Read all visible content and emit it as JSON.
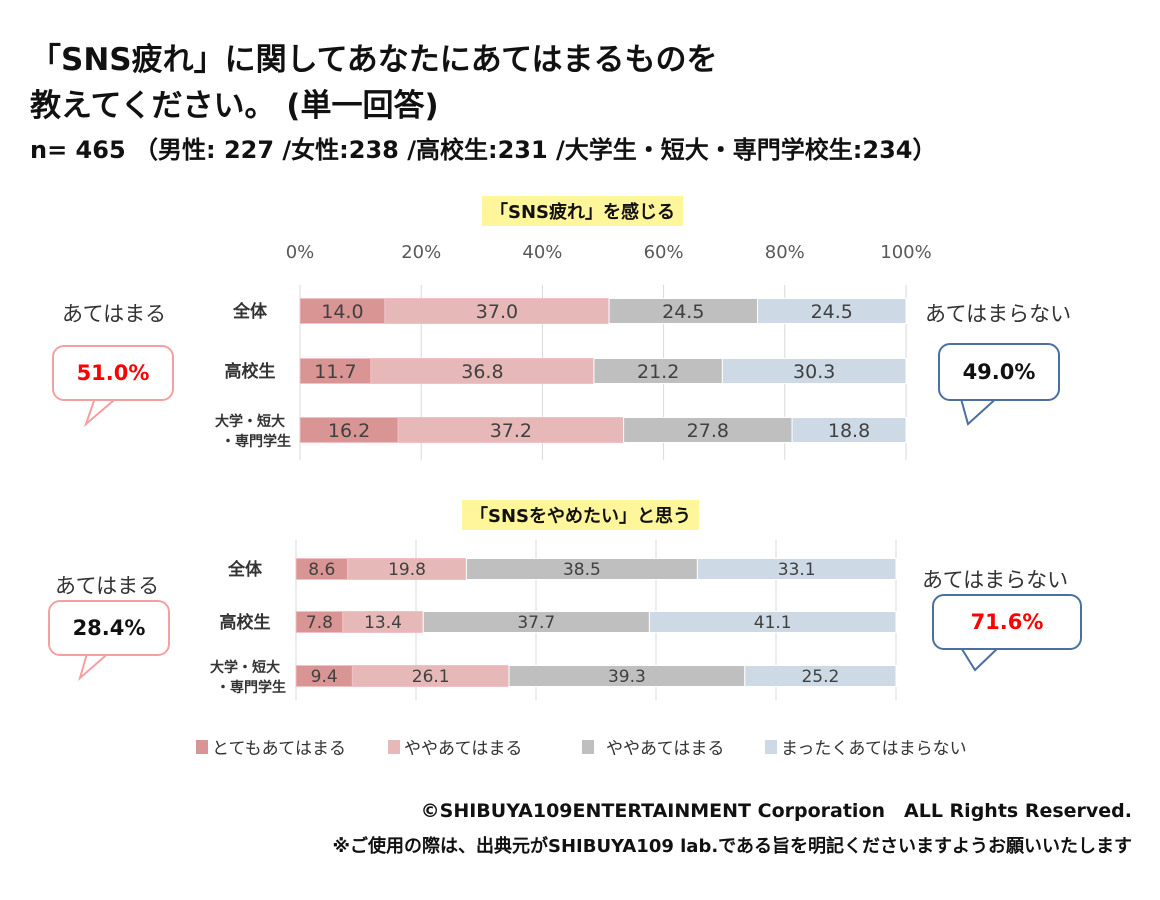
{
  "title_line1": "「SNS疲れ」に関してあなたにあてはまるものを",
  "title_line2": "教えてください。 (単一回答)",
  "subtitle": "n= 465 （男性: 227 /女性:238 /高校生:231 /大学生・短大・専門学校生:234）",
  "colors": {
    "very": "#d99594",
    "somewhat": "#e6b9b8",
    "not_much": "#bfbfbf",
    "not_at_all": "#cdd9e5",
    "red": "#ff0000",
    "pink_border": "#f4a0a0",
    "blue_border": "#4a6fa0"
  },
  "chart_data": [
    {
      "type": "bar",
      "orientation": "horizontal",
      "stacked": true,
      "title": "「SNS疲れ」を感じる",
      "categories": [
        "全体",
        "高校生",
        "大学・短大・専門学生"
      ],
      "category_lines": [
        [
          "全体"
        ],
        [
          "高校生"
        ],
        [
          "大学・短大",
          "・専門学生"
        ]
      ],
      "xticks": [
        "0%",
        "20%",
        "40%",
        "60%",
        "80%",
        "100%"
      ],
      "xlim": [
        0,
        100
      ],
      "grid": true,
      "series": [
        {
          "name": "とてもあてはまる",
          "values": [
            14.0,
            11.7,
            16.2
          ]
        },
        {
          "name": "ややあてはまる",
          "values": [
            37.0,
            36.8,
            37.2
          ]
        },
        {
          "name": "ややあてはまる",
          "values": [
            24.5,
            21.2,
            27.8
          ]
        },
        {
          "name": "まったくあてはまらない",
          "values": [
            24.5,
            30.3,
            18.8
          ]
        }
      ],
      "left_label": "あてはまる",
      "left_value": "51.0%",
      "right_label": "あてはまらない",
      "right_value": "49.0%"
    },
    {
      "type": "bar",
      "orientation": "horizontal",
      "stacked": true,
      "title": "「SNSをやめたい」と思う",
      "categories": [
        "全体",
        "高校生",
        "大学・短大・専門学生"
      ],
      "category_lines": [
        [
          "全体"
        ],
        [
          "高校生"
        ],
        [
          "大学・短大",
          "・専門学生"
        ]
      ],
      "xlim": [
        0,
        100
      ],
      "grid": true,
      "series": [
        {
          "name": "とてもあてはまる",
          "values": [
            8.6,
            7.8,
            9.4
          ]
        },
        {
          "name": "ややあてはまる",
          "values": [
            19.8,
            13.4,
            26.1
          ]
        },
        {
          "name": "ややあてはまる",
          "values": [
            38.5,
            37.7,
            39.3
          ]
        },
        {
          "name": "まったくあてはまらない",
          "values": [
            33.1,
            41.1,
            25.2
          ]
        }
      ],
      "left_label": "あてはまる",
      "left_value": "28.4%",
      "right_label": "あてはまらない",
      "right_value": "71.6%"
    }
  ],
  "legend": [
    "とてもあてはまる",
    "ややあてはまる",
    "ややあてはまる",
    "まったくあてはまらない"
  ],
  "footer1": "©SHIBUYA109ENTERTAINMENT Corporation　ALL Rights Reserved.",
  "footer2": "※ご使用の際は、出典元がSHIBUYA109 lab.である旨を明記くださいますようお願いいたします"
}
